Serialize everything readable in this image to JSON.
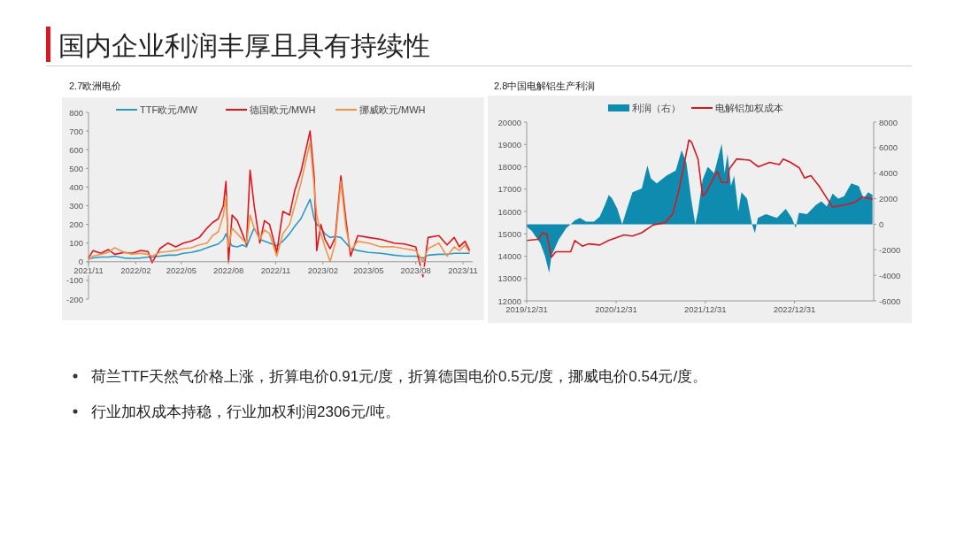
{
  "chart_data": [
    {
      "type": "other",
      "title": "国内企业利润丰厚且具有持续性"
    },
    {
      "type": "line",
      "title": "2.7欧洲电价",
      "legend": "top",
      "xlim": [
        "2021-11-01",
        "2023-11-20"
      ],
      "ylim": [
        -200,
        800
      ],
      "xticks": [
        {
          "value": "2021-11-01",
          "label": "2021/11"
        },
        {
          "value": "2022-02-01",
          "label": "2022/02"
        },
        {
          "value": "2022-05-01",
          "label": "2022/05"
        },
        {
          "value": "2022-08-01",
          "label": "2022/08"
        },
        {
          "value": "2022-11-01",
          "label": "2022/11"
        },
        {
          "value": "2023-02-01",
          "label": "2023/02"
        },
        {
          "value": "2023-05-01",
          "label": "2023/05"
        },
        {
          "value": "2023-08-01",
          "label": "2023/08"
        },
        {
          "value": "2023-11-01",
          "label": "2023/11"
        }
      ],
      "yticks": [
        -200,
        -100,
        0,
        100,
        200,
        300,
        400,
        500,
        600,
        700,
        800
      ],
      "x": [
        "2021-11-01",
        "2021-11-10",
        "2021-11-25",
        "2021-12-10",
        "2021-12-22",
        "2022-01-10",
        "2022-01-25",
        "2022-02-10",
        "2022-02-25",
        "2022-03-05",
        "2022-03-20",
        "2022-04-05",
        "2022-04-20",
        "2022-05-05",
        "2022-05-20",
        "2022-06-05",
        "2022-06-20",
        "2022-07-01",
        "2022-07-12",
        "2022-07-22",
        "2022-07-27",
        "2022-08-01",
        "2022-08-08",
        "2022-08-18",
        "2022-08-28",
        "2022-09-05",
        "2022-09-12",
        "2022-09-20",
        "2022-10-01",
        "2022-10-10",
        "2022-10-20",
        "2022-11-03",
        "2022-11-15",
        "2022-11-28",
        "2022-12-08",
        "2022-12-20",
        "2023-01-07",
        "2023-01-15",
        "2023-01-20",
        "2023-01-28",
        "2023-02-05",
        "2023-02-15",
        "2023-02-25",
        "2023-03-08",
        "2023-03-18",
        "2023-03-27",
        "2023-04-10",
        "2023-05-01",
        "2023-05-25",
        "2023-06-20",
        "2023-07-10",
        "2023-08-01",
        "2023-08-15",
        "2023-08-25",
        "2023-09-15",
        "2023-10-01",
        "2023-10-15",
        "2023-10-25",
        "2023-11-05",
        "2023-11-14"
      ],
      "series": [
        {
          "name": "TTF欧元/MW",
          "color": "#2b9bc6",
          "values": [
            15,
            20,
            25,
            25,
            30,
            20,
            18,
            20,
            25,
            25,
            30,
            35,
            35,
            45,
            50,
            60,
            75,
            85,
            95,
            120,
            150,
            110,
            85,
            80,
            90,
            80,
            130,
            180,
            120,
            110,
            100,
            85,
            110,
            150,
            190,
            230,
            335,
            230,
            200,
            180,
            150,
            130,
            135,
            130,
            100,
            70,
            60,
            50,
            45,
            35,
            30,
            30,
            20,
            35,
            40,
            40,
            45,
            45,
            45,
            45
          ]
        },
        {
          "name": "德国欧元/MWH",
          "color": "#e3141c",
          "values": [
            20,
            60,
            45,
            65,
            40,
            50,
            45,
            60,
            55,
            -5,
            70,
            100,
            80,
            100,
            110,
            130,
            180,
            210,
            230,
            300,
            430,
            0,
            250,
            220,
            150,
            90,
            490,
            300,
            100,
            220,
            200,
            50,
            270,
            250,
            380,
            480,
            700,
            450,
            60,
            200,
            120,
            70,
            130,
            460,
            220,
            30,
            140,
            130,
            120,
            100,
            95,
            80,
            -80,
            130,
            140,
            90,
            130,
            80,
            110,
            60
          ]
        },
        {
          "name": "挪威欧元/MWH",
          "color": "#f0964c",
          "values": [
            10,
            30,
            40,
            50,
            75,
            50,
            40,
            45,
            40,
            30,
            50,
            55,
            60,
            70,
            75,
            90,
            100,
            140,
            160,
            250,
            350,
            80,
            180,
            150,
            120,
            100,
            250,
            180,
            120,
            170,
            150,
            30,
            150,
            200,
            300,
            420,
            640,
            400,
            250,
            150,
            80,
            0,
            100,
            430,
            180,
            60,
            110,
            100,
            80,
            80,
            70,
            60,
            0,
            70,
            100,
            30,
            80,
            60,
            90,
            50
          ]
        }
      ]
    },
    {
      "type": "line",
      "title": "2.8中国电解铝生产利润",
      "legend": "top",
      "xlim": [
        "2019-12-31",
        "2023-11-20"
      ],
      "ylim": [
        12000,
        20000
      ],
      "y2lim": [
        -6000,
        8000
      ],
      "xticks": [
        {
          "value": "2019-12-31",
          "label": "2019/12/31"
        },
        {
          "value": "2020-12-31",
          "label": "2020/12/31"
        },
        {
          "value": "2021-12-31",
          "label": "2021/12/31"
        },
        {
          "value": "2022-12-31",
          "label": "2022/12/31"
        }
      ],
      "yticks": [
        12000,
        13000,
        14000,
        15000,
        16000,
        17000,
        18000,
        19000,
        20000
      ],
      "y2ticks": [
        -6000,
        -4000,
        -2000,
        0,
        2000,
        4000,
        6000,
        8000
      ],
      "series": [
        {
          "name": "利润（右）",
          "type": "area",
          "axis": "y2",
          "color": "#0f8bb0",
          "x": [
            "2019-12-31",
            "2020-01-20",
            "2020-02-25",
            "2020-03-15",
            "2020-04-01",
            "2020-04-10",
            "2020-05-10",
            "2020-06-10",
            "2020-06-28",
            "2020-07-15",
            "2020-08-05",
            "2020-08-30",
            "2020-10-01",
            "2020-10-25",
            "2020-11-15",
            "2020-12-01",
            "2020-12-15",
            "2021-01-05",
            "2021-01-25",
            "2021-02-10",
            "2021-03-08",
            "2021-04-15",
            "2021-05-08",
            "2021-05-22",
            "2021-06-15",
            "2021-07-25",
            "2021-09-01",
            "2021-09-25",
            "2021-10-15",
            "2021-11-03",
            "2021-11-20",
            "2021-12-01",
            "2021-12-20",
            "2022-01-10",
            "2022-02-05",
            "2022-03-08",
            "2022-03-20",
            "2022-04-01",
            "2022-04-15",
            "2022-04-28",
            "2022-05-15",
            "2022-05-28",
            "2022-06-20",
            "2022-07-10",
            "2022-07-22",
            "2022-08-03",
            "2022-09-05",
            "2022-10-20",
            "2022-11-25",
            "2022-12-20",
            "2023-01-05",
            "2023-01-18",
            "2023-02-20",
            "2023-03-28",
            "2023-04-20",
            "2023-05-12",
            "2023-06-05",
            "2023-06-28",
            "2023-07-22",
            "2023-08-20",
            "2023-09-20",
            "2023-10-10",
            "2023-10-28",
            "2023-11-15"
          ],
          "values": [
            -200,
            -500,
            -1500,
            -2500,
            -3800,
            -2500,
            -1200,
            -300,
            0,
            300,
            500,
            200,
            200,
            600,
            1500,
            2300,
            2000,
            1200,
            0,
            1000,
            2500,
            2800,
            4600,
            3600,
            3200,
            3800,
            4200,
            5800,
            4800,
            2000,
            0,
            1000,
            3500,
            4500,
            4000,
            6300,
            4000,
            5500,
            3000,
            3800,
            1000,
            2500,
            2000,
            0,
            -700,
            500,
            800,
            500,
            1200,
            500,
            -300,
            900,
            800,
            1500,
            1800,
            1400,
            2400,
            2000,
            2200,
            3200,
            3000,
            2000,
            2500,
            2300
          ]
        },
        {
          "name": "电解铝加权成本",
          "type": "line",
          "color": "#d41920",
          "x": [
            "2019-12-31",
            "2020-02-15",
            "2020-03-05",
            "2020-03-22",
            "2020-04-10",
            "2020-04-28",
            "2020-06-28",
            "2020-07-15",
            "2020-08-15",
            "2020-09-10",
            "2020-10-25",
            "2020-11-30",
            "2021-02-01",
            "2021-03-08",
            "2021-04-15",
            "2021-06-01",
            "2021-07-20",
            "2021-08-20",
            "2021-09-15",
            "2021-10-05",
            "2021-10-25",
            "2021-11-05",
            "2021-12-01",
            "2021-12-20",
            "2021-12-31",
            "2022-01-25",
            "2022-02-18",
            "2022-03-08",
            "2022-04-01",
            "2022-04-08",
            "2022-05-08",
            "2022-06-30",
            "2022-08-05",
            "2022-09-20",
            "2022-10-30",
            "2022-11-15",
            "2022-12-15",
            "2023-01-20",
            "2023-02-10",
            "2023-03-08",
            "2023-04-10",
            "2023-05-15",
            "2023-06-05",
            "2023-07-25",
            "2023-09-01",
            "2023-10-05",
            "2023-11-15"
          ],
          "values": [
            14700,
            14750,
            15050,
            15000,
            13950,
            14200,
            14200,
            14700,
            14450,
            14550,
            14500,
            14700,
            14950,
            14900,
            15050,
            15400,
            15500,
            15900,
            17000,
            18100,
            19200,
            19100,
            18350,
            16700,
            16800,
            17300,
            17800,
            17300,
            17300,
            17900,
            18350,
            18300,
            18000,
            18200,
            18100,
            18350,
            18200,
            17950,
            17500,
            17600,
            17150,
            16550,
            16200,
            16300,
            16400,
            16650,
            16550
          ]
        }
      ]
    },
    {
      "type": "other",
      "annotations": [
        "荷兰TTF天然气价格上涨，折算电价0.91元/度，折算德国电价0.5元/度，挪威电价0.54元/度。",
        "行业加权成本持稳，行业加权利润2306元/吨。"
      ]
    }
  ]
}
